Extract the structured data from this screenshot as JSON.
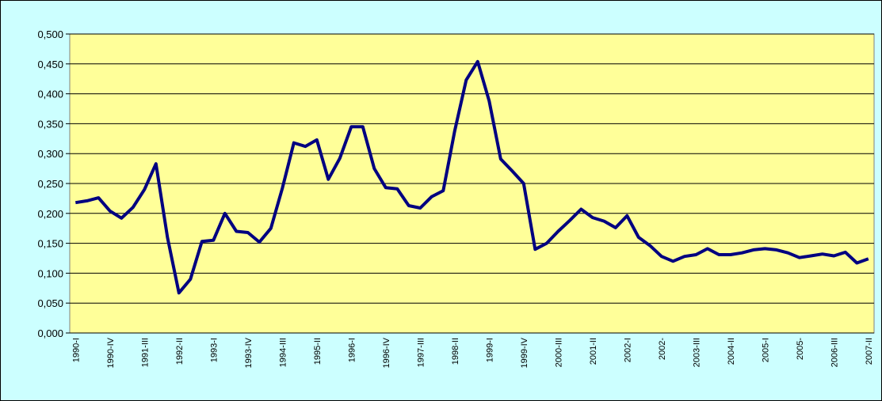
{
  "chart_data": {
    "type": "line",
    "categories": [
      "1990-I",
      null,
      null,
      "1990-IV",
      null,
      null,
      "1991-III",
      null,
      null,
      "1992-II",
      null,
      null,
      "1993-I",
      null,
      null,
      "1993-IV",
      null,
      null,
      "1994-III",
      null,
      null,
      "1995-II",
      null,
      null,
      "1996-I",
      null,
      null,
      "1996-IV",
      null,
      null,
      "1997-III",
      null,
      null,
      "1998-II",
      null,
      null,
      "1999-I",
      null,
      null,
      "1999-IV",
      null,
      null,
      "2000-III",
      null,
      null,
      "2001-II",
      null,
      null,
      "2002-I",
      null,
      null,
      "2002-",
      null,
      null,
      "2003-III",
      null,
      null,
      "2004-II",
      null,
      null,
      "2005-I",
      null,
      null,
      "2005-",
      null,
      null,
      "2006-III",
      null,
      null,
      "2007-II"
    ],
    "series": [
      {
        "color": "#000080",
        "values": [
          0.218,
          0.221,
          0.226,
          0.204,
          0.192,
          0.21,
          0.24,
          0.283,
          0.16,
          0.067,
          0.09,
          0.153,
          0.155,
          0.2,
          0.17,
          0.168,
          0.152,
          0.175,
          0.242,
          0.318,
          0.312,
          0.323,
          0.257,
          0.292,
          0.345,
          0.345,
          0.275,
          0.243,
          0.241,
          0.213,
          0.209,
          0.228,
          0.238,
          0.338,
          0.423,
          0.454,
          0.388,
          0.291,
          0.271,
          0.25,
          0.14,
          0.15,
          0.17,
          0.188,
          0.207,
          0.193,
          0.187,
          0.176,
          0.196,
          0.16,
          0.146,
          0.128,
          0.12,
          0.128,
          0.131,
          0.141,
          0.131,
          0.131,
          0.134,
          0.139,
          0.141,
          0.139,
          0.134,
          0.126,
          0.129,
          0.132,
          0.129,
          0.135,
          0.117,
          0.124
        ]
      }
    ],
    "ylim": [
      0,
      0.5
    ],
    "yticks": [
      {
        "value": 0,
        "label": "0,000"
      },
      {
        "value": 0.05,
        "label": "0,050"
      },
      {
        "value": 0.1,
        "label": "0,100"
      },
      {
        "value": 0.15,
        "label": "0,150"
      },
      {
        "value": 0.2,
        "label": "0,200"
      },
      {
        "value": 0.25,
        "label": "0,250"
      },
      {
        "value": 0.3,
        "label": "0,300"
      },
      {
        "value": 0.35,
        "label": "0,350"
      },
      {
        "value": 0.4,
        "label": "0,400"
      },
      {
        "value": 0.45,
        "label": "0,450"
      },
      {
        "value": 0.5,
        "label": "0,500"
      }
    ],
    "grid": true
  }
}
